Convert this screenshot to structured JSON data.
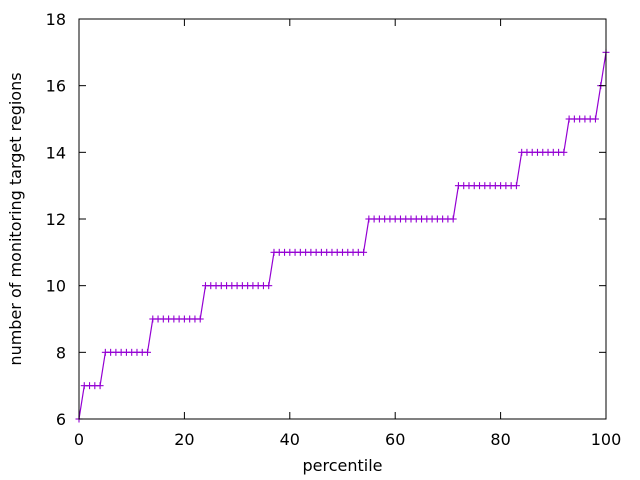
{
  "chart_data": {
    "type": "line",
    "title": "",
    "xlabel": "percentile",
    "ylabel": "number of monitoring target regions",
    "xlim": [
      0,
      100
    ],
    "ylim": [
      6,
      18
    ],
    "xticks": [
      "0",
      "20",
      "40",
      "60",
      "80",
      "100"
    ],
    "yticks": [
      "6",
      "8",
      "10",
      "12",
      "14",
      "16",
      "18"
    ],
    "grid": false,
    "legend": "none",
    "series": [
      {
        "color": "#9400d3",
        "marker": "plus",
        "points": [
          [
            0,
            6
          ],
          [
            1,
            7
          ],
          [
            2,
            7
          ],
          [
            3,
            7
          ],
          [
            4,
            7
          ],
          [
            5,
            8
          ],
          [
            6,
            8
          ],
          [
            7,
            8
          ],
          [
            8,
            8
          ],
          [
            9,
            8
          ],
          [
            10,
            8
          ],
          [
            11,
            8
          ],
          [
            12,
            8
          ],
          [
            13,
            8
          ],
          [
            14,
            9
          ],
          [
            15,
            9
          ],
          [
            16,
            9
          ],
          [
            17,
            9
          ],
          [
            18,
            9
          ],
          [
            19,
            9
          ],
          [
            20,
            9
          ],
          [
            21,
            9
          ],
          [
            22,
            9
          ],
          [
            23,
            9
          ],
          [
            24,
            10
          ],
          [
            25,
            10
          ],
          [
            26,
            10
          ],
          [
            27,
            10
          ],
          [
            28,
            10
          ],
          [
            29,
            10
          ],
          [
            30,
            10
          ],
          [
            31,
            10
          ],
          [
            32,
            10
          ],
          [
            33,
            10
          ],
          [
            34,
            10
          ],
          [
            35,
            10
          ],
          [
            36,
            10
          ],
          [
            37,
            11
          ],
          [
            38,
            11
          ],
          [
            39,
            11
          ],
          [
            40,
            11
          ],
          [
            41,
            11
          ],
          [
            42,
            11
          ],
          [
            43,
            11
          ],
          [
            44,
            11
          ],
          [
            45,
            11
          ],
          [
            46,
            11
          ],
          [
            47,
            11
          ],
          [
            48,
            11
          ],
          [
            49,
            11
          ],
          [
            50,
            11
          ],
          [
            51,
            11
          ],
          [
            52,
            11
          ],
          [
            53,
            11
          ],
          [
            54,
            11
          ],
          [
            55,
            12
          ],
          [
            56,
            12
          ],
          [
            57,
            12
          ],
          [
            58,
            12
          ],
          [
            59,
            12
          ],
          [
            60,
            12
          ],
          [
            61,
            12
          ],
          [
            62,
            12
          ],
          [
            63,
            12
          ],
          [
            64,
            12
          ],
          [
            65,
            12
          ],
          [
            66,
            12
          ],
          [
            67,
            12
          ],
          [
            68,
            12
          ],
          [
            69,
            12
          ],
          [
            70,
            12
          ],
          [
            71,
            12
          ],
          [
            72,
            13
          ],
          [
            73,
            13
          ],
          [
            74,
            13
          ],
          [
            75,
            13
          ],
          [
            76,
            13
          ],
          [
            77,
            13
          ],
          [
            78,
            13
          ],
          [
            79,
            13
          ],
          [
            80,
            13
          ],
          [
            81,
            13
          ],
          [
            82,
            13
          ],
          [
            83,
            13
          ],
          [
            84,
            14
          ],
          [
            85,
            14
          ],
          [
            86,
            14
          ],
          [
            87,
            14
          ],
          [
            88,
            14
          ],
          [
            89,
            14
          ],
          [
            90,
            14
          ],
          [
            91,
            14
          ],
          [
            92,
            14
          ],
          [
            93,
            15
          ],
          [
            94,
            15
          ],
          [
            95,
            15
          ],
          [
            96,
            15
          ],
          [
            97,
            15
          ],
          [
            98,
            15
          ],
          [
            99,
            16
          ],
          [
            100,
            17
          ]
        ]
      }
    ]
  }
}
